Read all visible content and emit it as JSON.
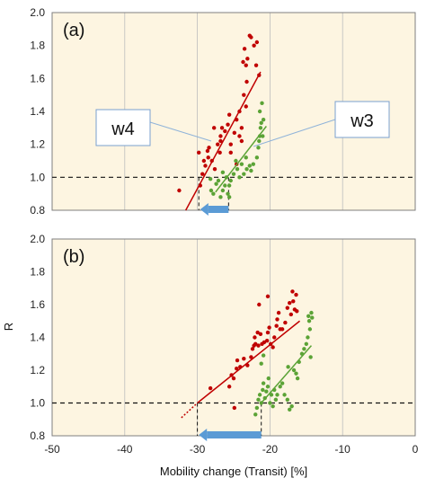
{
  "chart_data": [
    {
      "type": "scatter",
      "panel_label": "(a)",
      "xlim": [
        -50,
        0
      ],
      "ylim": [
        0.8,
        2.0
      ],
      "yticks": [
        "0.8",
        "1.0",
        "1.2",
        "1.4",
        "1.6",
        "1.8",
        "2.0"
      ],
      "xticks": [],
      "ylabel": "",
      "xlabel": "",
      "threshold_y": 1.0,
      "background": "#fdf5e1",
      "series": [
        {
          "name": "w4",
          "color": "#c00000",
          "points": [
            [
              -32.5,
              0.92
            ],
            [
              -29.6,
              0.95
            ],
            [
              -29.3,
              1.02
            ],
            [
              -28.9,
              1.07
            ],
            [
              -29.1,
              1.1
            ],
            [
              -28.5,
              1.12
            ],
            [
              -28.4,
              1.18
            ],
            [
              -28.0,
              1.1
            ],
            [
              -27.6,
              1.05
            ],
            [
              -27.2,
              1.2
            ],
            [
              -26.8,
              1.22
            ],
            [
              -26.8,
              1.25
            ],
            [
              -26.6,
              1.3
            ],
            [
              -26.2,
              1.28
            ],
            [
              -25.8,
              1.32
            ],
            [
              -25.4,
              1.2
            ],
            [
              -25.4,
              1.15
            ],
            [
              -24.9,
              1.27
            ],
            [
              -24.6,
              1.35
            ],
            [
              -24.2,
              1.4
            ],
            [
              -24.2,
              1.25
            ],
            [
              -23.9,
              1.3
            ],
            [
              -23.6,
              1.5
            ],
            [
              -23.3,
              1.43
            ],
            [
              -23.7,
              1.7
            ],
            [
              -23.5,
              1.78
            ],
            [
              -23.3,
              1.68
            ],
            [
              -23.1,
              1.72
            ],
            [
              -23.2,
              1.58
            ],
            [
              -22.6,
              1.85
            ],
            [
              -22.2,
              1.8
            ],
            [
              -21.8,
              1.82
            ],
            [
              -21.9,
              1.68
            ],
            [
              -21.5,
              1.62
            ],
            [
              -29.8,
              1.15
            ],
            [
              -28.6,
              1.16
            ],
            [
              -27.7,
              1.3
            ],
            [
              -26.9,
              1.15
            ],
            [
              -25.6,
              1.38
            ],
            [
              -24.6,
              1.08
            ],
            [
              -23.9,
              1.22
            ],
            [
              -22.8,
              1.86
            ]
          ],
          "fit": [
            [
              -31.6,
              0.8
            ],
            [
              -21.3,
              1.64
            ]
          ]
        },
        {
          "name": "w3",
          "color": "#5ba336",
          "points": [
            [
              -28.1,
              0.92
            ],
            [
              -27.8,
              0.9
            ],
            [
              -27.4,
              0.96
            ],
            [
              -27.1,
              0.98
            ],
            [
              -26.8,
              0.88
            ],
            [
              -26.5,
              0.92
            ],
            [
              -26.2,
              0.95
            ],
            [
              -26.0,
              1.0
            ],
            [
              -25.8,
              0.9
            ],
            [
              -25.6,
              0.95
            ],
            [
              -25.4,
              0.98
            ],
            [
              -25.0,
              1.02
            ],
            [
              -24.5,
              1.05
            ],
            [
              -24.2,
              1.0
            ],
            [
              -23.9,
              1.08
            ],
            [
              -23.6,
              1.02
            ],
            [
              -23.2,
              1.05
            ],
            [
              -22.8,
              1.07
            ],
            [
              -22.3,
              1.08
            ],
            [
              -21.8,
              1.12
            ],
            [
              -21.6,
              1.18
            ],
            [
              -21.4,
              1.25
            ],
            [
              -21.3,
              1.3
            ],
            [
              -21.2,
              1.33
            ],
            [
              -21.0,
              1.25
            ],
            [
              -21.4,
              1.4
            ],
            [
              -21.1,
              1.45
            ],
            [
              -20.9,
              1.35
            ],
            [
              -21.5,
              1.22
            ],
            [
              -28.2,
              0.99
            ],
            [
              -26.5,
              1.03
            ],
            [
              -25.6,
              0.88
            ],
            [
              -24.7,
              1.1
            ],
            [
              -23.3,
              1.12
            ],
            [
              -22.6,
              1.04
            ]
          ],
          "fit": [
            [
              -27.5,
              0.91
            ],
            [
              -20.5,
              1.31
            ]
          ]
        }
      ],
      "threshold_intersections_x": [
        -29.8,
        -25.7
      ],
      "arrow": {
        "from_x": -25.7,
        "to_x": -29.6
      }
    },
    {
      "type": "scatter",
      "panel_label": "(b)",
      "xlim": [
        -50,
        0
      ],
      "ylim": [
        0.8,
        2.0
      ],
      "yticks": [
        "0.8",
        "1.0",
        "1.2",
        "1.4",
        "1.6",
        "1.8",
        "2.0"
      ],
      "xticks": [
        "-50",
        "-40",
        "-30",
        "-20",
        "-10",
        "0"
      ],
      "ylabel": "R",
      "xlabel": "Mobility change (Transit) [%]",
      "threshold_y": 1.0,
      "background": "#fdf5e1",
      "series": [
        {
          "name": "w4",
          "color": "#c00000",
          "points": [
            [
              -28.2,
              1.09
            ],
            [
              -25.6,
              1.1
            ],
            [
              -25.3,
              1.17
            ],
            [
              -25.0,
              1.15
            ],
            [
              -24.6,
              1.21
            ],
            [
              -24.5,
              1.26
            ],
            [
              -24.1,
              1.22
            ],
            [
              -23.6,
              1.27
            ],
            [
              -23.1,
              1.23
            ],
            [
              -22.6,
              1.28
            ],
            [
              -22.4,
              1.33
            ],
            [
              -22.2,
              1.35
            ],
            [
              -22.0,
              1.36
            ],
            [
              -21.7,
              1.43
            ],
            [
              -21.6,
              1.35
            ],
            [
              -21.3,
              1.42
            ],
            [
              -21.1,
              1.36
            ],
            [
              -20.8,
              1.37
            ],
            [
              -20.4,
              1.38
            ],
            [
              -20.1,
              1.46
            ],
            [
              -19.9,
              1.36
            ],
            [
              -19.6,
              1.34
            ],
            [
              -19.4,
              1.4
            ],
            [
              -19.1,
              1.47
            ],
            [
              -18.6,
              1.45
            ],
            [
              -18.3,
              1.45
            ],
            [
              -17.9,
              1.49
            ],
            [
              -17.6,
              1.58
            ],
            [
              -17.3,
              1.61
            ],
            [
              -17.1,
              1.54
            ],
            [
              -16.8,
              1.62
            ],
            [
              -16.6,
              1.57
            ],
            [
              -16.4,
              1.66
            ],
            [
              -16.9,
              1.68
            ],
            [
              -16.3,
              1.56
            ],
            [
              -19.0,
              1.51
            ],
            [
              -20.3,
              1.43
            ],
            [
              -18.8,
              1.55
            ],
            [
              -21.5,
              1.6
            ],
            [
              -22.1,
              1.4
            ],
            [
              -24.9,
              0.97
            ],
            [
              -20.3,
              1.65
            ]
          ],
          "fit": [
            [
              -30.0,
              1.0
            ],
            [
              -15.9,
              1.5
            ]
          ],
          "fit_extension": [
            [
              -32.2,
              0.91
            ],
            [
              -30.0,
              1.0
            ]
          ]
        },
        {
          "name": "w3",
          "color": "#5ba336",
          "points": [
            [
              -21.8,
              0.97
            ],
            [
              -21.6,
              1.02
            ],
            [
              -21.4,
              1.05
            ],
            [
              -21.2,
              1.0
            ],
            [
              -21.0,
              1.08
            ],
            [
              -20.9,
              1.12
            ],
            [
              -20.7,
              1.03
            ],
            [
              -20.5,
              1.07
            ],
            [
              -20.3,
              1.1
            ],
            [
              -20.2,
              1.15
            ],
            [
              -20.0,
              1.0
            ],
            [
              -19.8,
              1.05
            ],
            [
              -19.6,
              0.98
            ],
            [
              -19.4,
              1.08
            ],
            [
              -19.2,
              1.02
            ],
            [
              -19.0,
              1.05
            ],
            [
              -18.6,
              1.1
            ],
            [
              -18.3,
              1.12
            ],
            [
              -18.0,
              1.05
            ],
            [
              -17.6,
              1.02
            ],
            [
              -17.3,
              0.96
            ],
            [
              -17.0,
              0.98
            ],
            [
              -16.7,
              1.2
            ],
            [
              -16.4,
              1.18
            ],
            [
              -16.0,
              1.25
            ],
            [
              -15.6,
              1.3
            ],
            [
              -15.3,
              1.33
            ],
            [
              -14.8,
              1.4
            ],
            [
              -14.6,
              1.5
            ],
            [
              -14.5,
              1.45
            ],
            [
              -14.3,
              1.55
            ],
            [
              -14.2,
              1.52
            ],
            [
              -14.4,
              1.28
            ],
            [
              -21.2,
              1.24
            ],
            [
              -20.9,
              1.29
            ],
            [
              -17.5,
              1.22
            ],
            [
              -16.2,
              1.15
            ],
            [
              -15.0,
              1.36
            ],
            [
              -14.7,
              1.53
            ],
            [
              -22.0,
              0.93
            ]
          ],
          "fit": [
            [
              -21.2,
              1.0
            ],
            [
              -14.3,
              1.35
            ]
          ]
        }
      ],
      "threshold_intersections_x": [
        -30.0,
        -21.2
      ],
      "arrow": {
        "from_x": -21.2,
        "to_x": -29.8
      }
    }
  ],
  "callouts": {
    "w4": "w4",
    "w3": "w3"
  }
}
